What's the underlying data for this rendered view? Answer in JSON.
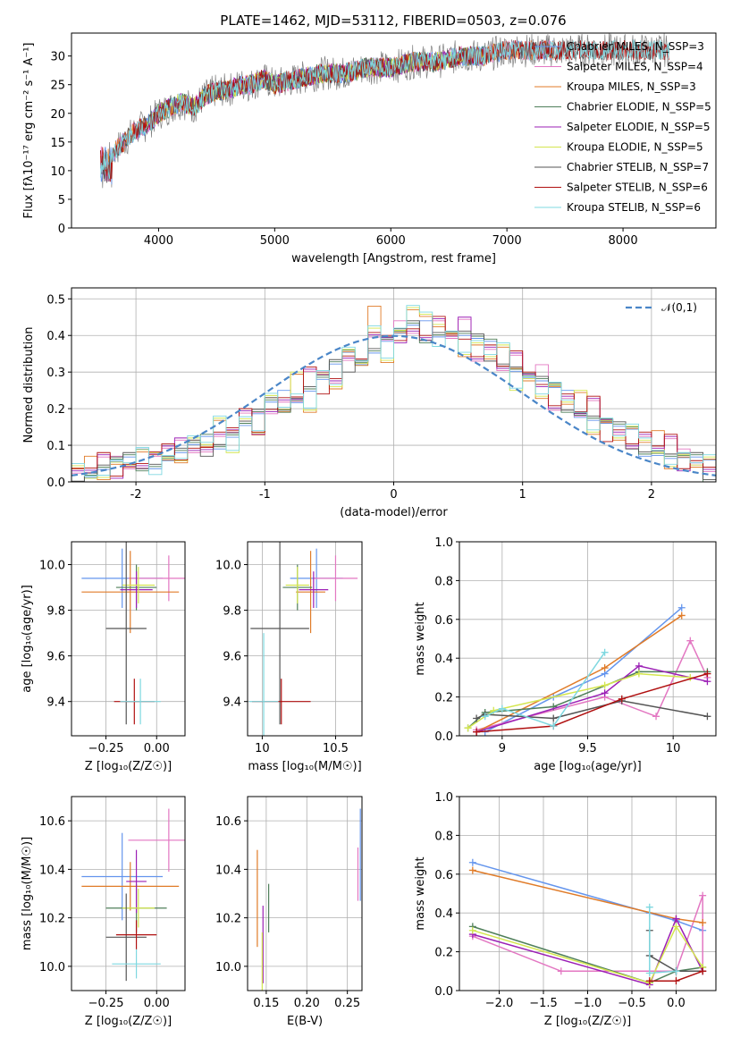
{
  "figure": {
    "title": "PLATE=1462, MJD=53112, FIBERID=0503, z=0.076"
  },
  "legend": {
    "entries": [
      {
        "label": "Chabrier MILES, N_SSP=3",
        "color": "#6495ED"
      },
      {
        "label": "Salpeter MILES, N_SSP=4",
        "color": "#e377c2"
      },
      {
        "label": "Kroupa MILES, N_SSP=3",
        "color": "#e07b28"
      },
      {
        "label": "Chabrier ELODIE, N_SSP=5",
        "color": "#4f7f5a"
      },
      {
        "label": "Salpeter ELODIE, N_SSP=5",
        "color": "#9b1fb5"
      },
      {
        "label": "Kroupa ELODIE, N_SSP=5",
        "color": "#d4e64f"
      },
      {
        "label": "Chabrier STELIB, N_SSP=7",
        "color": "#555555"
      },
      {
        "label": "Salpeter STELIB, N_SSP=6",
        "color": "#b01010"
      },
      {
        "label": "Kroupa STELIB, N_SSP=6",
        "color": "#7fd8e0"
      }
    ]
  },
  "chart_data": [
    {
      "id": "spectrum",
      "type": "line",
      "xlabel": "wavelength [Angstrom, rest frame]",
      "ylabel": "Flux [fλ10⁻¹⁷ erg cm⁻² s⁻¹ A⁻¹]",
      "xlim": [
        3250,
        8800
      ],
      "ylim": [
        0,
        34
      ],
      "xticks": [
        4000,
        5000,
        6000,
        7000,
        8000
      ],
      "yticks": [
        0,
        5,
        10,
        15,
        20,
        25,
        30
      ],
      "data_color": "#808080",
      "data": {
        "x": [
          3500,
          3600,
          3700,
          3800,
          3900,
          4000,
          4100,
          4200,
          4300,
          4400,
          4500,
          4600,
          4700,
          4800,
          4900,
          5000,
          5200,
          5400,
          5600,
          5800,
          6000,
          6200,
          6400,
          6600,
          6800,
          7000,
          7200,
          7400
        ],
        "y": [
          13,
          13,
          15,
          17,
          18,
          20,
          21,
          22,
          21,
          23,
          24,
          24,
          25,
          25,
          26,
          25,
          26,
          27,
          27,
          28,
          28,
          29,
          29,
          30,
          30,
          31,
          31,
          31
        ]
      },
      "model_ranges": [
        [
          3500,
          7400
        ],
        [
          3500,
          7400
        ],
        [
          3500,
          7400
        ],
        [
          3900,
          6800
        ],
        [
          3900,
          6800
        ],
        [
          3900,
          6800
        ],
        [
          3500,
          8700
        ],
        [
          3500,
          8700
        ],
        [
          3500,
          8700
        ]
      ]
    },
    {
      "id": "residuals",
      "type": "histogram",
      "xlabel": "(data-model)/error",
      "ylabel": "Normed distribution",
      "xlim": [
        -2.5,
        2.5
      ],
      "ylim": [
        0,
        0.53
      ],
      "xticks": [
        -2,
        -1,
        0,
        1,
        2
      ],
      "yticks": [
        0.0,
        0.1,
        0.2,
        0.3,
        0.4,
        0.5
      ],
      "gaussian_label": "𝒩(0,1)",
      "gaussian_color": "#4a86c8",
      "bin_width": 0.1,
      "bins_start": -2.5,
      "series_heights": [
        [
          0.02,
          0.03,
          0.04,
          0.05,
          0.05,
          0.06,
          0.06,
          0.07,
          0.08,
          0.09,
          0.1,
          0.12,
          0.14,
          0.16,
          0.18,
          0.2,
          0.22,
          0.24,
          0.26,
          0.28,
          0.31,
          0.33,
          0.35,
          0.37,
          0.39,
          0.4,
          0.41,
          0.41,
          0.42,
          0.41,
          0.4,
          0.38,
          0.36,
          0.34,
          0.32,
          0.29,
          0.27,
          0.24,
          0.22,
          0.2,
          0.18,
          0.16,
          0.14,
          0.12,
          0.1,
          0.09,
          0.07,
          0.06,
          0.05,
          0.03
        ],
        [
          0.03,
          0.02,
          0.05,
          0.04,
          0.06,
          0.05,
          0.07,
          0.08,
          0.09,
          0.11,
          0.1,
          0.13,
          0.13,
          0.17,
          0.16,
          0.21,
          0.23,
          0.22,
          0.29,
          0.27,
          0.3,
          0.35,
          0.33,
          0.39,
          0.37,
          0.41,
          0.43,
          0.4,
          0.44,
          0.38,
          0.42,
          0.36,
          0.38,
          0.31,
          0.34,
          0.27,
          0.29,
          0.22,
          0.24,
          0.18,
          0.21,
          0.14,
          0.16,
          0.11,
          0.13,
          0.08,
          0.1,
          0.06,
          0.07,
          0.04
        ],
        [
          0.02,
          0.04,
          0.03,
          0.06,
          0.04,
          0.07,
          0.05,
          0.09,
          0.07,
          0.12,
          0.09,
          0.15,
          0.11,
          0.19,
          0.14,
          0.23,
          0.18,
          0.27,
          0.22,
          0.31,
          0.26,
          0.35,
          0.3,
          0.45,
          0.35,
          0.42,
          0.47,
          0.44,
          0.4,
          0.43,
          0.36,
          0.38,
          0.33,
          0.35,
          0.28,
          0.3,
          0.24,
          0.26,
          0.2,
          0.22,
          0.16,
          0.18,
          0.12,
          0.14,
          0.09,
          0.11,
          0.06,
          0.08,
          0.04,
          0.05
        ]
      ]
    },
    {
      "id": "age-vs-z",
      "type": "scatter",
      "xlabel": "Z [log₁₀(Z/Z☉)]",
      "ylabel": "age  [log₁₀(age/yr)]",
      "xlim": [
        -0.42,
        0.14
      ],
      "ylim": [
        9.25,
        10.1
      ],
      "xticks": [
        -0.25,
        0.0
      ],
      "xtick_labels": [
        "−0.25",
        "0.00"
      ],
      "yticks": [
        9.4,
        9.6,
        9.8,
        10.0
      ],
      "points": [
        {
          "x": -0.17,
          "y": 9.94,
          "xerr": 0.2,
          "yerr": 0.13
        },
        {
          "x": 0.06,
          "y": 9.94,
          "xerr": 0.2,
          "yerr": 0.1
        },
        {
          "x": -0.13,
          "y": 9.88,
          "xerr": 0.24,
          "yerr": 0.18
        },
        {
          "x": -0.1,
          "y": 9.9,
          "xerr": 0.1,
          "yerr": 0.1
        },
        {
          "x": -0.1,
          "y": 9.89,
          "xerr": 0.08,
          "yerr": 0.08
        },
        {
          "x": -0.09,
          "y": 9.91,
          "xerr": 0.08,
          "yerr": 0.08
        },
        {
          "x": -0.15,
          "y": 9.72,
          "xerr": 0.1,
          "yerr": 0.42
        },
        {
          "x": -0.11,
          "y": 9.4,
          "xerr": 0.1,
          "yerr": 0.1
        },
        {
          "x": -0.08,
          "y": 9.4,
          "xerr": 0.1,
          "yerr": 0.1
        }
      ]
    },
    {
      "id": "age-vs-mass",
      "type": "scatter",
      "xlabel": "mass [log₁₀(M/M☉)]",
      "ylabel": "",
      "xlim": [
        9.9,
        10.68
      ],
      "ylim": [
        9.25,
        10.1
      ],
      "xticks": [
        10.0,
        10.5
      ],
      "yticks": [
        9.4,
        9.6,
        9.8,
        10.0
      ],
      "points": [
        {
          "x": 10.37,
          "y": 9.94,
          "xerr": 0.18,
          "yerr": 0.13
        },
        {
          "x": 10.5,
          "y": 9.94,
          "xerr": 0.15,
          "yerr": 0.1
        },
        {
          "x": 10.33,
          "y": 9.88,
          "xerr": 0.1,
          "yerr": 0.18
        },
        {
          "x": 10.24,
          "y": 9.9,
          "xerr": 0.1,
          "yerr": 0.1
        },
        {
          "x": 10.35,
          "y": 9.89,
          "xerr": 0.1,
          "yerr": 0.08
        },
        {
          "x": 10.24,
          "y": 9.91,
          "xerr": 0.08,
          "yerr": 0.08
        },
        {
          "x": 10.12,
          "y": 9.72,
          "xerr": 0.2,
          "yerr": 0.42
        },
        {
          "x": 10.13,
          "y": 9.4,
          "xerr": 0.2,
          "yerr": 0.1
        },
        {
          "x": 10.01,
          "y": 9.4,
          "xerr": 0.1,
          "yerr": 0.3
        }
      ]
    },
    {
      "id": "massweight-vs-age",
      "type": "line",
      "xlabel": "age  [log₁₀(age/yr)]",
      "ylabel": "mass weight",
      "xlim": [
        8.75,
        10.25
      ],
      "ylim": [
        0,
        1.0
      ],
      "xticks": [
        9.0,
        9.5,
        10.0
      ],
      "yticks": [
        0.0,
        0.2,
        0.4,
        0.6,
        0.8,
        1.0
      ],
      "series": [
        {
          "x": [
            8.9,
            9.3,
            9.6,
            10.05
          ],
          "y": [
            0.02,
            0.2,
            0.32,
            0.66
          ]
        },
        {
          "x": [
            8.85,
            9.6,
            9.9,
            10.1,
            10.2
          ],
          "y": [
            0.03,
            0.2,
            0.1,
            0.49,
            0.3
          ]
        },
        {
          "x": [
            8.85,
            9.6,
            10.05
          ],
          "y": [
            0.02,
            0.35,
            0.62
          ]
        },
        {
          "x": [
            8.8,
            8.9,
            9.3,
            9.8,
            10.2
          ],
          "y": [
            0.04,
            0.12,
            0.15,
            0.33,
            0.33
          ]
        },
        {
          "x": [
            8.85,
            9.6,
            9.8,
            10.2
          ],
          "y": [
            0.02,
            0.22,
            0.36,
            0.28
          ]
        },
        {
          "x": [
            8.8,
            8.95,
            9.6,
            9.8,
            10.1
          ],
          "y": [
            0.04,
            0.13,
            0.26,
            0.32,
            0.3
          ]
        },
        {
          "x": [
            8.85,
            8.9,
            9.3,
            9.7,
            10.2
          ],
          "y": [
            0.09,
            0.11,
            0.09,
            0.18,
            0.1
          ]
        },
        {
          "x": [
            8.85,
            9.3,
            9.7,
            10.2
          ],
          "y": [
            0.02,
            0.05,
            0.19,
            0.32
          ]
        },
        {
          "x": [
            8.9,
            9.0,
            9.3,
            9.6
          ],
          "y": [
            0.1,
            0.14,
            0.05,
            0.43
          ]
        }
      ]
    },
    {
      "id": "mass-vs-z",
      "type": "scatter",
      "xlabel": "Z [log₁₀(Z/Z☉)]",
      "ylabel": "mass [log₁₀(M/M☉)]",
      "xlim": [
        -0.42,
        0.14
      ],
      "ylim": [
        9.9,
        10.7
      ],
      "xticks": [
        -0.25,
        0.0
      ],
      "xtick_labels": [
        "−0.25",
        "0.00"
      ],
      "yticks": [
        10.0,
        10.2,
        10.4,
        10.6
      ],
      "points": [
        {
          "x": -0.17,
          "y": 10.37,
          "xerr": 0.2,
          "yerr": 0.18
        },
        {
          "x": 0.06,
          "y": 10.52,
          "xerr": 0.2,
          "yerr": 0.13
        },
        {
          "x": -0.13,
          "y": 10.33,
          "xerr": 0.24,
          "yerr": 0.1
        },
        {
          "x": -0.1,
          "y": 10.24,
          "xerr": 0.15,
          "yerr": 0.1
        },
        {
          "x": -0.1,
          "y": 10.35,
          "xerr": 0.05,
          "yerr": 0.13
        },
        {
          "x": -0.09,
          "y": 10.24,
          "xerr": 0.08,
          "yerr": 0.08
        },
        {
          "x": -0.15,
          "y": 10.12,
          "xerr": 0.1,
          "yerr": 0.18
        },
        {
          "x": -0.1,
          "y": 10.13,
          "xerr": 0.1,
          "yerr": 0.06
        },
        {
          "x": -0.1,
          "y": 10.01,
          "xerr": 0.12,
          "yerr": 0.06
        }
      ]
    },
    {
      "id": "mass-vs-ebv",
      "type": "scatter",
      "xlabel": "E(B-V)",
      "ylabel": "",
      "xlim": [
        0.127,
        0.268
      ],
      "ylim": [
        9.9,
        10.7
      ],
      "xticks": [
        0.15,
        0.2,
        0.25
      ],
      "xtick_labels": [
        "0.15",
        "0.20",
        "0.25"
      ],
      "yticks": [
        10.0,
        10.2,
        10.4,
        10.6
      ],
      "points": [
        {
          "x": 0.266,
          "y": 10.46,
          "xerr": 0,
          "yerr": 0.19
        },
        {
          "x": 0.263,
          "y": 10.38,
          "xerr": 0,
          "yerr": 0.11
        },
        {
          "x": 0.139,
          "y": 10.28,
          "xerr": 0,
          "yerr": 0.2
        },
        {
          "x": 0.153,
          "y": 10.24,
          "xerr": 0,
          "yerr": 0.1
        },
        {
          "x": 0.146,
          "y": 10.09,
          "xerr": 0,
          "yerr": 0.16
        },
        {
          "x": 0.145,
          "y": 10.02,
          "xerr": 0,
          "yerr": 0.12
        }
      ]
    },
    {
      "id": "massweight-vs-z",
      "type": "line",
      "xlabel": "Z [log₁₀(Z/Z☉)]",
      "ylabel": "mass weight",
      "xlim": [
        -2.45,
        0.45
      ],
      "ylim": [
        0,
        1.0
      ],
      "xticks": [
        -2.0,
        -1.5,
        -1.0,
        -0.5,
        0.0
      ],
      "xtick_labels": [
        "−2.0",
        "−1.5",
        "−1.0",
        "−0.5",
        "0.0"
      ],
      "yticks": [
        0.0,
        0.2,
        0.4,
        0.6,
        0.8,
        1.0
      ],
      "series": [
        {
          "x": [
            -2.3,
            -0.3,
            0.0,
            0.3
          ],
          "y": [
            0.66,
            0.4,
            0.36,
            0.31
          ]
        },
        {
          "x": [
            -2.3,
            -1.3,
            -0.3,
            0.0,
            0.3,
            0.3
          ],
          "y": [
            0.28,
            0.1,
            0.1,
            0.1,
            0.49,
            0.1
          ]
        },
        {
          "x": [
            -2.3,
            0.0,
            0.3
          ],
          "y": [
            0.62,
            0.37,
            0.35
          ]
        },
        {
          "x": [
            -2.3,
            -0.3,
            0.0,
            0.3
          ],
          "y": [
            0.33,
            0.04,
            0.1,
            0.12
          ]
        },
        {
          "x": [
            -2.3,
            -0.3,
            0.0,
            0.3
          ],
          "y": [
            0.29,
            0.03,
            0.37,
            0.1
          ]
        },
        {
          "x": [
            -2.3,
            -0.3,
            0.0,
            0.3
          ],
          "y": [
            0.31,
            0.04,
            0.33,
            0.12
          ]
        },
        {
          "x": [
            -0.3,
            -0.3,
            0.0,
            0.3
          ],
          "y": [
            0.31,
            0.18,
            0.1,
            0.1
          ]
        },
        {
          "x": [
            -0.3,
            0.0,
            0.3
          ],
          "y": [
            0.05,
            0.05,
            0.1
          ]
        },
        {
          "x": [
            -0.3,
            -0.3,
            0.0
          ],
          "y": [
            0.43,
            0.09,
            0.1
          ]
        }
      ]
    }
  ]
}
